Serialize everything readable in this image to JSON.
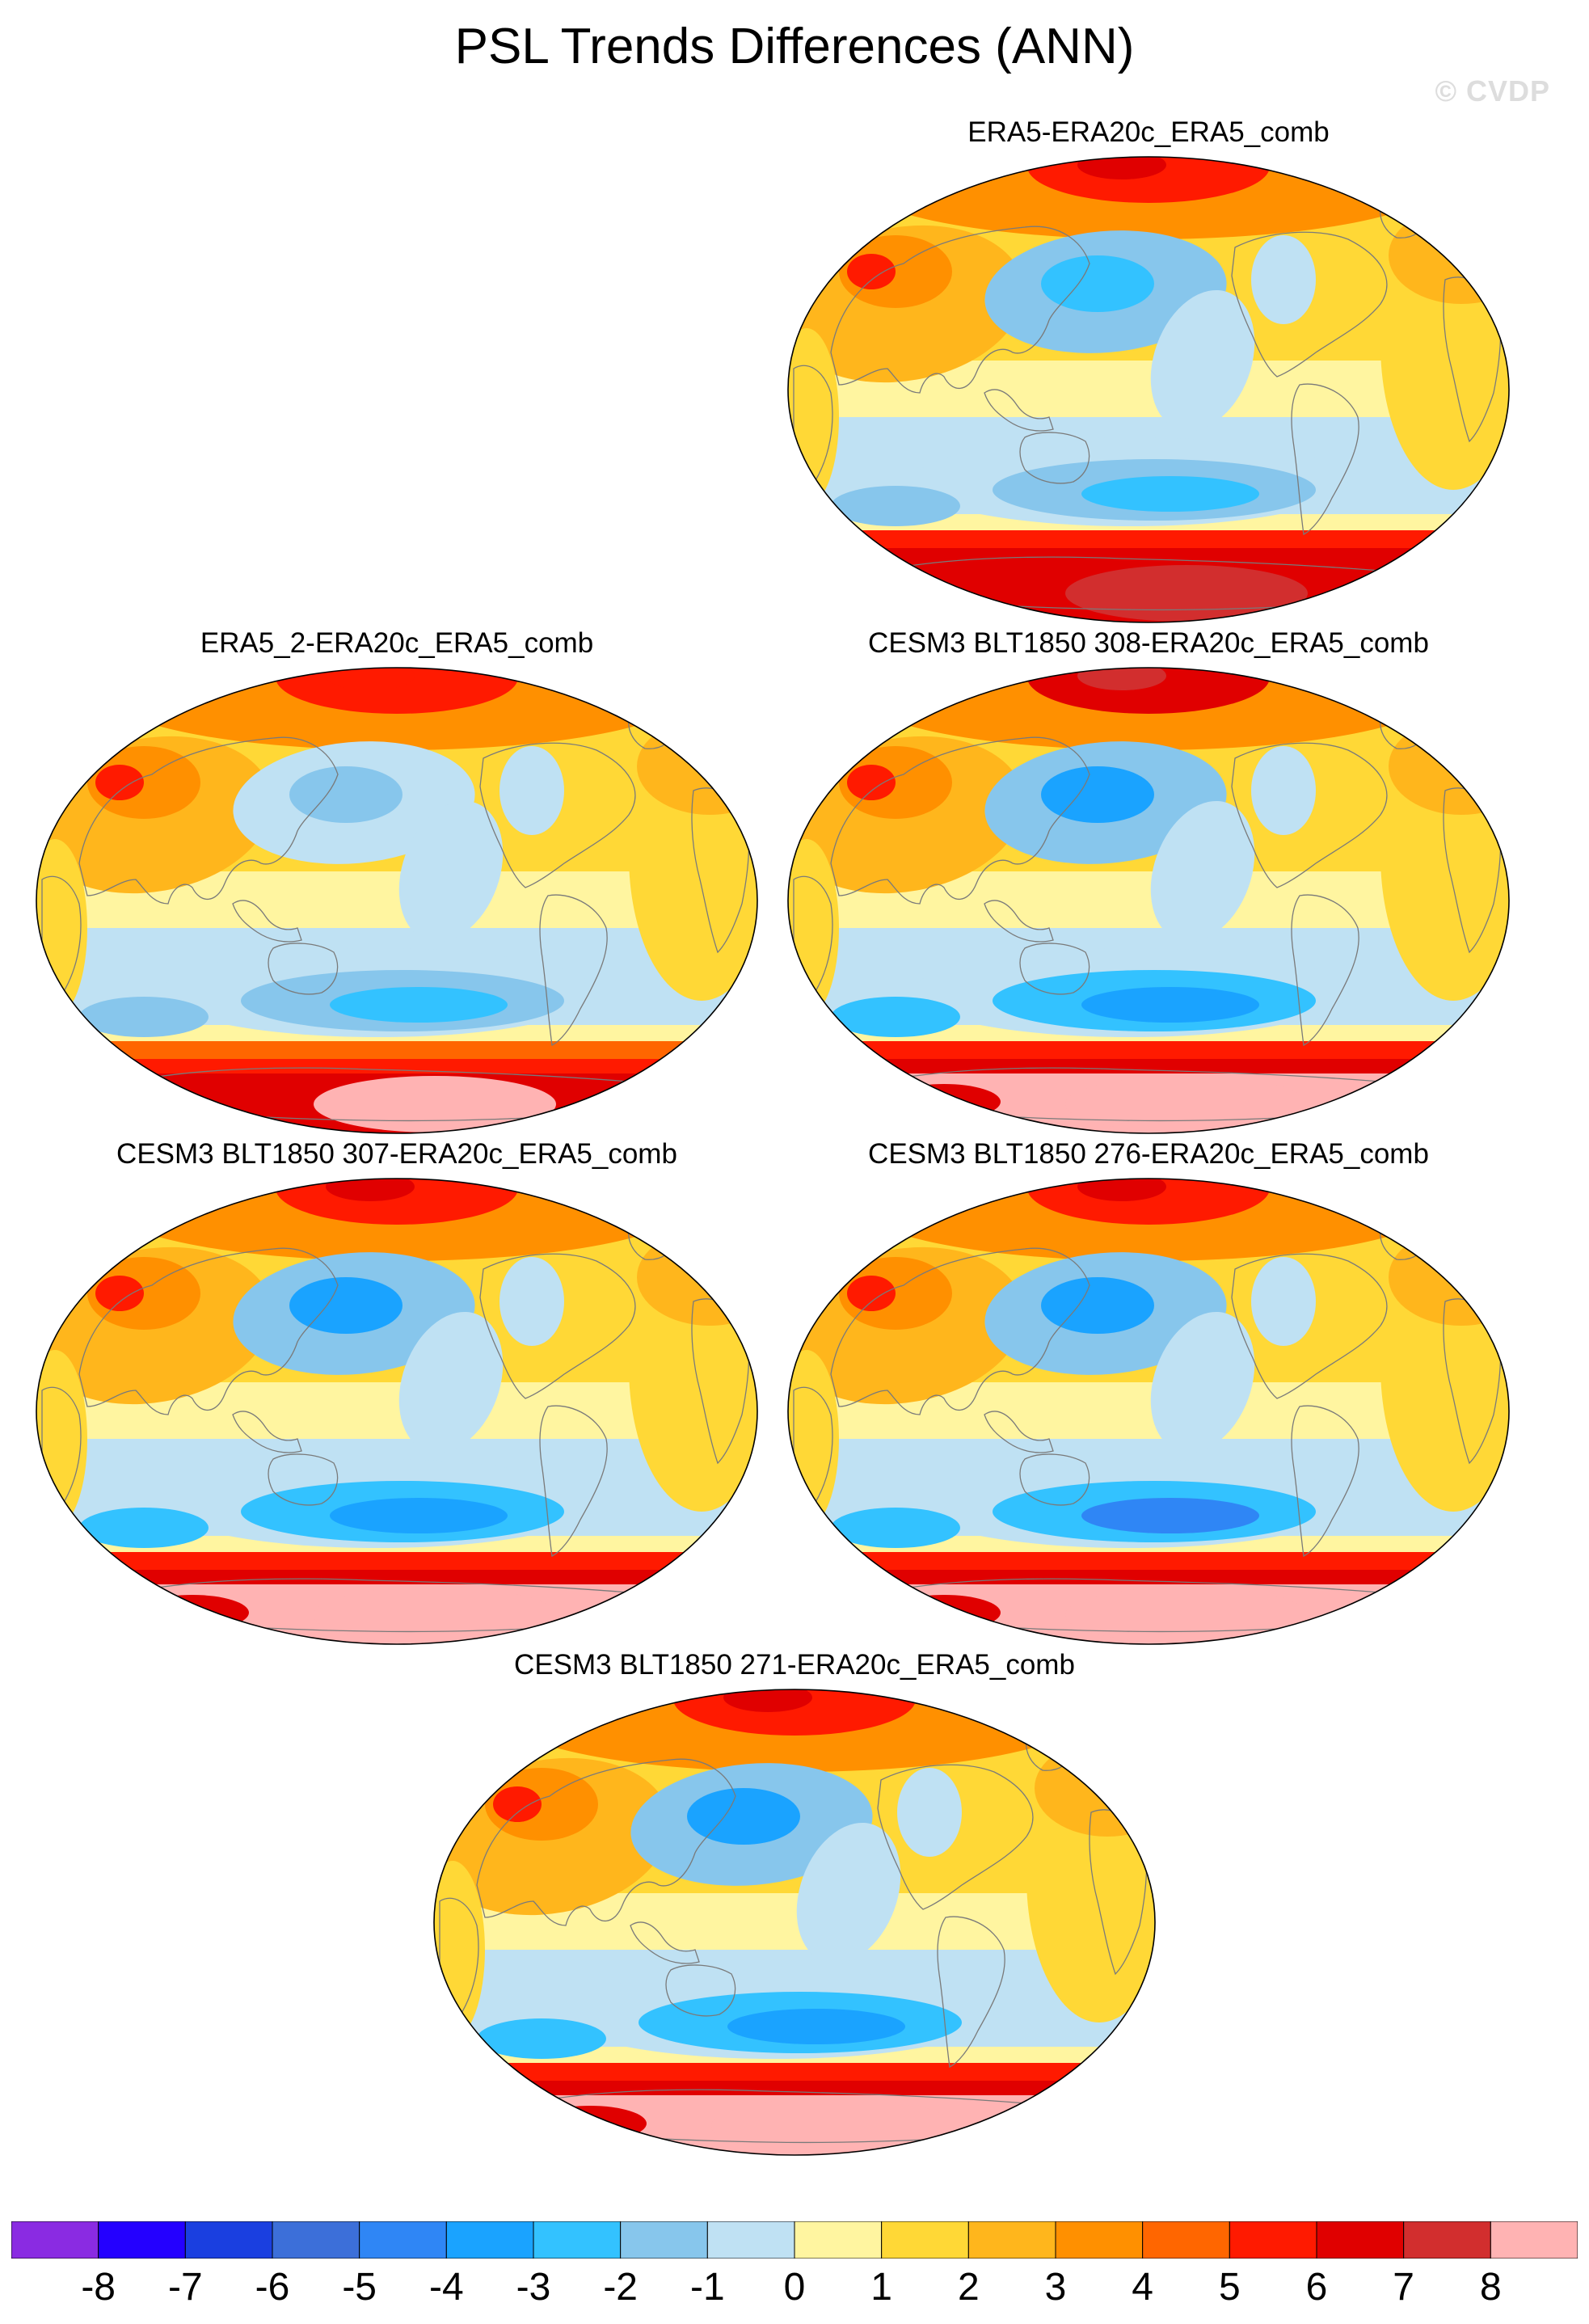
{
  "title": "PSL Trends Differences (ANN)",
  "watermark": "© CVDP",
  "panels": [
    {
      "title": "ERA5-ERA20c_ERA5_comb",
      "variant": 0
    },
    {
      "title": "ERA5_2-ERA20c_ERA5_comb",
      "variant": 1
    },
    {
      "title": "CESM3 BLT1850 308-ERA20c_ERA5_comb",
      "variant": 2
    },
    {
      "title": "CESM3 BLT1850 307-ERA20c_ERA5_comb",
      "variant": 3
    },
    {
      "title": "CESM3 BLT1850 276-ERA20c_ERA5_comb",
      "variant": 4
    },
    {
      "title": "CESM3 BLT1850 271-ERA20c_ERA5_comb",
      "variant": 5
    }
  ],
  "colorbar": {
    "labels": [
      "-8",
      "-7",
      "-6",
      "-5",
      "-4",
      "-3",
      "-2",
      "-1",
      "0",
      "1",
      "2",
      "3",
      "4",
      "5",
      "6",
      "7",
      "8"
    ],
    "colors": [
      "#8a2be2",
      "#2400ff",
      "#1a3fe0",
      "#3c6fd9",
      "#2f86f5",
      "#1aa3ff",
      "#33c2ff",
      "#87c6ec",
      "#bfe1f3",
      "#fff5a0",
      "#ffd836",
      "#ffb61c",
      "#ff9000",
      "#ff6600",
      "#ff1a00",
      "#e00000",
      "#d22e2e",
      "#ffb3b3"
    ]
  }
}
